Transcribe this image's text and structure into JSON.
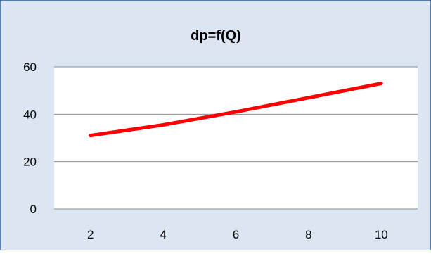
{
  "chart_data": {
    "type": "line",
    "title": "dp=f(Q)",
    "xlabel": "",
    "ylabel": "",
    "x": [
      2,
      4,
      6,
      8,
      10
    ],
    "x_ticks": [
      "2",
      "4",
      "6",
      "8",
      "10"
    ],
    "y_ticks": [
      "0",
      "20",
      "40",
      "60"
    ],
    "ylim": [
      0,
      60
    ],
    "xlim": [
      1,
      11
    ],
    "grid": "horizontal",
    "legend": "none",
    "series": [
      {
        "values": [
          31,
          35.5,
          41,
          47,
          53
        ],
        "color": "#ff0000"
      }
    ],
    "plot_background": "#ffffff",
    "chart_background": "#dce6f2",
    "border_color": "#4f81bd"
  }
}
